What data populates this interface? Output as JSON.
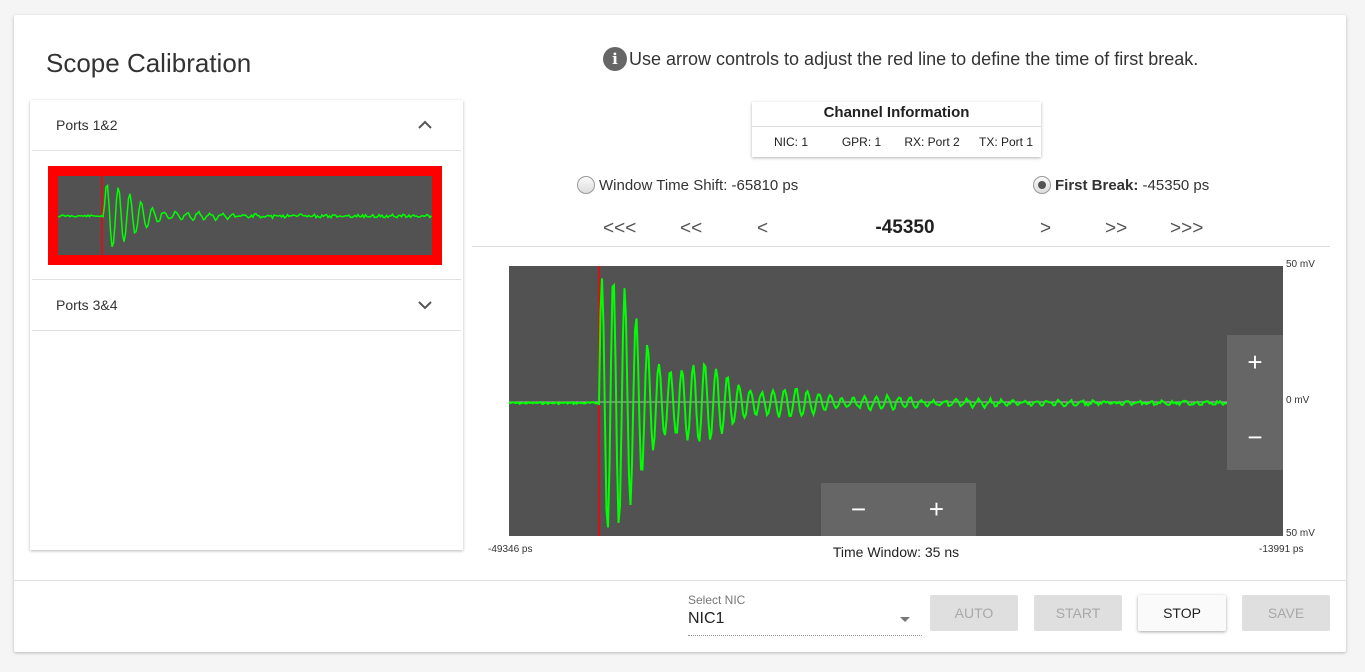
{
  "page": {
    "title": "Scope Calibration"
  },
  "info": {
    "icon": "info-icon",
    "text": "Use arrow controls to adjust the red line to define the time of first break."
  },
  "ports": [
    {
      "label": "Ports 1&2",
      "expanded": true,
      "icon": "chevron-up-icon"
    },
    {
      "label": "Ports 3&4",
      "expanded": false,
      "icon": "chevron-down-icon"
    }
  ],
  "channel_info": {
    "title": "Channel Information",
    "fields": [
      "NIC: 1",
      "GPR: 1",
      "RX: Port 2",
      "TX: Port 1"
    ]
  },
  "options": {
    "window_shift": {
      "label": "Window Time Shift:",
      "value": "-65810 ps",
      "selected": false
    },
    "first_break": {
      "label": "First Break:",
      "value": "-45350 ps",
      "selected": true
    }
  },
  "nav": {
    "fast_back": "<<<",
    "back": "<<",
    "step_back": "<",
    "value": "-45350",
    "step_fwd": ">",
    "fwd": ">>",
    "fast_fwd": ">>>"
  },
  "scope": {
    "y_top": "50 mV",
    "y_mid": "0 mV",
    "y_bottom": "50 mV",
    "x_left": "-49346 ps",
    "x_right": "-13991 ps",
    "time_window": "Time Window: 35 ns",
    "background": "#525252",
    "trace_color": "#00ff00",
    "marker_color": "#ff0000"
  },
  "zoom": {
    "amp_in": "+",
    "amp_out": "−",
    "time_out": "−",
    "time_in": "+"
  },
  "footer": {
    "nic_label": "Select NIC",
    "nic_value": "NIC1",
    "auto": "AUTO",
    "start": "START",
    "stop": "STOP",
    "save": "SAVE"
  }
}
